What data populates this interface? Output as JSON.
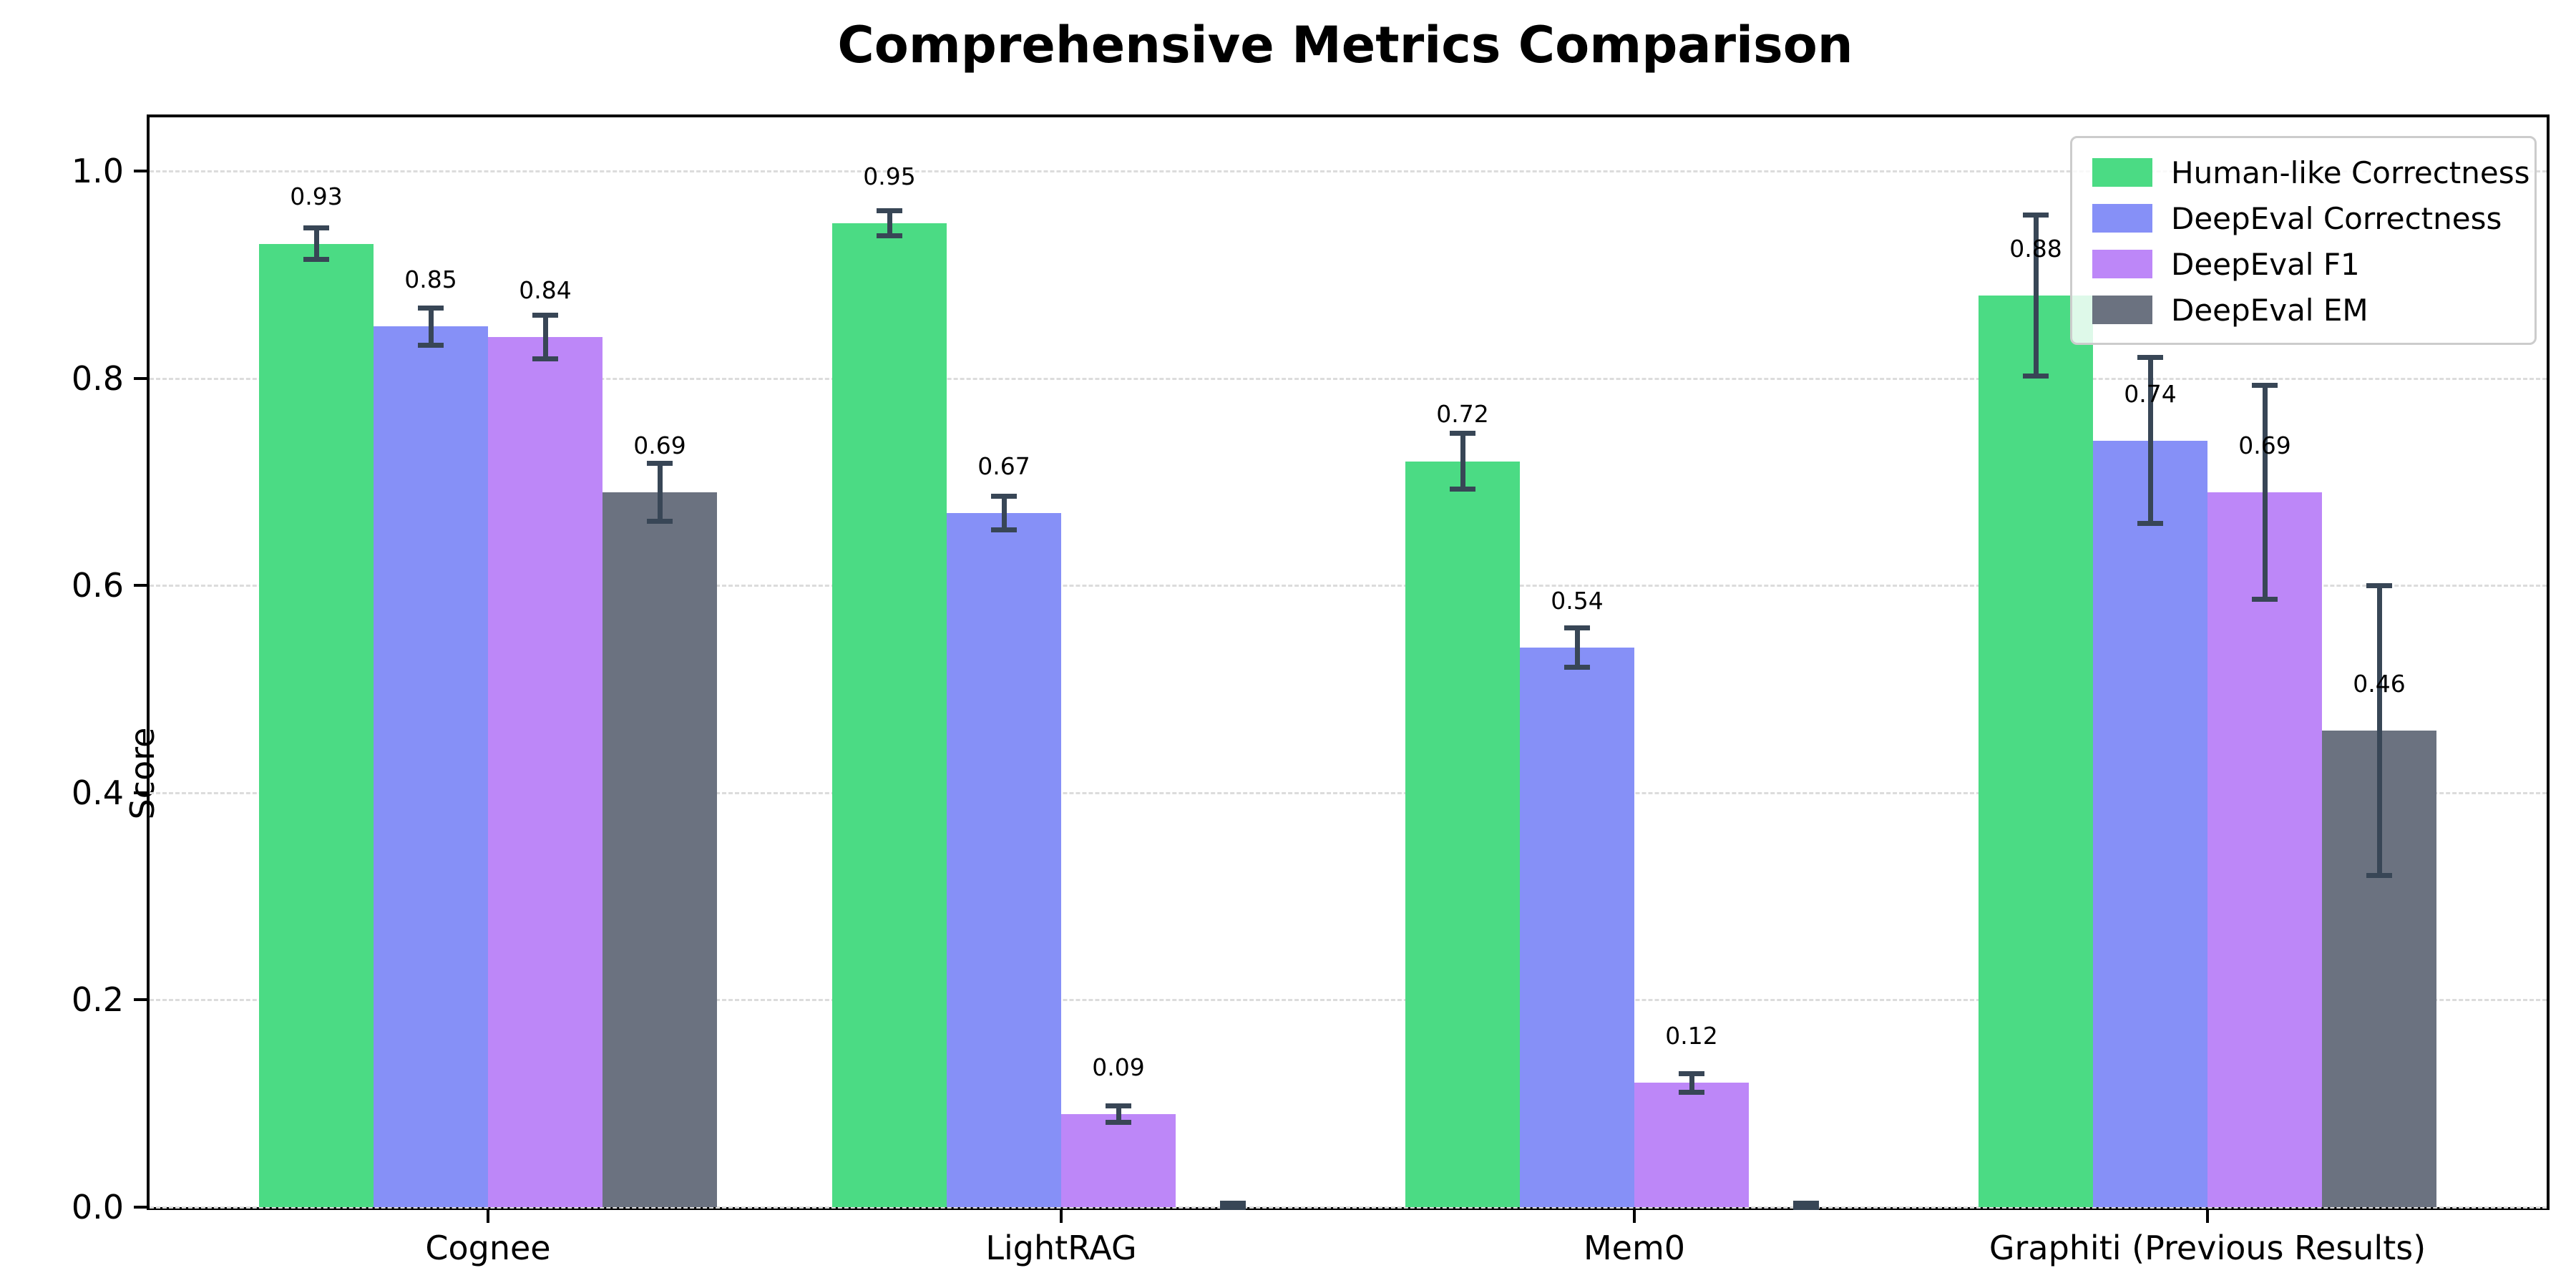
{
  "chart_data": {
    "type": "bar",
    "title": "Comprehensive Metrics Comparison",
    "ylabel": "Score",
    "xlabel": "",
    "categories": [
      "Cognee",
      "LightRAG",
      "Mem0",
      "Graphiti (Previous Results)"
    ],
    "series": [
      {
        "name": "Human-like Correctness",
        "color": "#4bdb84",
        "values": [
          0.93,
          0.95,
          0.72,
          0.88
        ],
        "errors": [
          0.015,
          0.012,
          0.027,
          0.078
        ],
        "labels": [
          "0.93",
          "0.95",
          "0.72",
          "0.88"
        ]
      },
      {
        "name": "DeepEval Correctness",
        "color": "#8690f7",
        "values": [
          0.85,
          0.67,
          0.54,
          0.74
        ],
        "errors": [
          0.018,
          0.016,
          0.019,
          0.08
        ],
        "labels": [
          "0.85",
          "0.67",
          "0.54",
          "0.74"
        ]
      },
      {
        "name": "DeepEval F1",
        "color": "#bd87f8",
        "values": [
          0.84,
          0.09,
          0.12,
          0.69
        ],
        "errors": [
          0.021,
          0.008,
          0.009,
          0.103
        ],
        "labels": [
          "0.84",
          "0.09",
          "0.12",
          "0.69"
        ]
      },
      {
        "name": "DeepEval EM",
        "color": "#6b7280",
        "values": [
          0.69,
          0.0,
          0.0,
          0.46
        ],
        "errors": [
          0.028,
          0.004,
          0.004,
          0.14
        ],
        "labels": [
          "0.69",
          "",
          "",
          "0.46"
        ]
      }
    ],
    "yticks": [
      0.0,
      0.2,
      0.4,
      0.6,
      0.8,
      1.0
    ],
    "ytick_labels": [
      "0.0",
      "0.2",
      "0.4",
      "0.6",
      "0.8",
      "1.0"
    ],
    "ylim": [
      0,
      1.052
    ],
    "grid": "horizontal-dashed",
    "legend_position": "upper right",
    "errorbar_color": "#384656"
  }
}
